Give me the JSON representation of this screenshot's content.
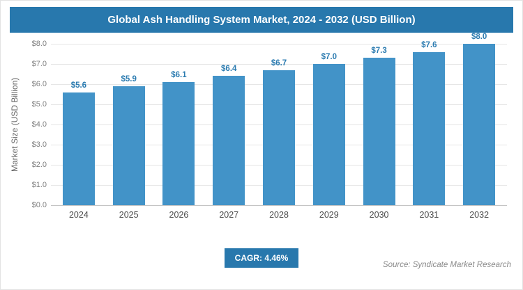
{
  "header": {
    "title": "Global Ash Handling System Market, 2024 - 2032 (USD Billion)"
  },
  "chart_data": {
    "type": "bar",
    "title": "Global Ash Handling System Market, 2024 - 2032 (USD Billion)",
    "categories": [
      "2024",
      "2025",
      "2026",
      "2027",
      "2028",
      "2029",
      "2030",
      "2031",
      "2032"
    ],
    "values": [
      5.6,
      5.9,
      6.1,
      6.4,
      6.7,
      7.0,
      7.3,
      7.6,
      8.0
    ],
    "value_labels": [
      "$5.6",
      "$5.9",
      "$6.1",
      "$6.4",
      "$6.7",
      "$7.0",
      "$7.3",
      "$7.6",
      "$8.0"
    ],
    "xlabel": "",
    "ylabel": "Market Size (USD Billion)",
    "ylim": [
      0,
      8
    ],
    "yticks": [
      {
        "value": 8,
        "label": "$8.0"
      },
      {
        "value": 7,
        "label": "$7.0"
      },
      {
        "value": 6,
        "label": "$6.0"
      },
      {
        "value": 5,
        "label": "$5.0"
      },
      {
        "value": 4,
        "label": "$4.0"
      },
      {
        "value": 3,
        "label": "$3.0"
      },
      {
        "value": 2,
        "label": "$2.0"
      },
      {
        "value": 1,
        "label": "$1.0"
      },
      {
        "value": 0,
        "label": "$0.0"
      }
    ],
    "grid": true,
    "legend": "none",
    "bar_color": "#4293c8"
  },
  "footer": {
    "cagr_label": "CAGR: 4.46%",
    "source": "Source: Syndicate Market Research"
  },
  "colors": {
    "banner_bg": "#2878ad",
    "bar": "#4293c8",
    "value_label": "#2b7bb0",
    "badge_bg": "#2878ad"
  }
}
